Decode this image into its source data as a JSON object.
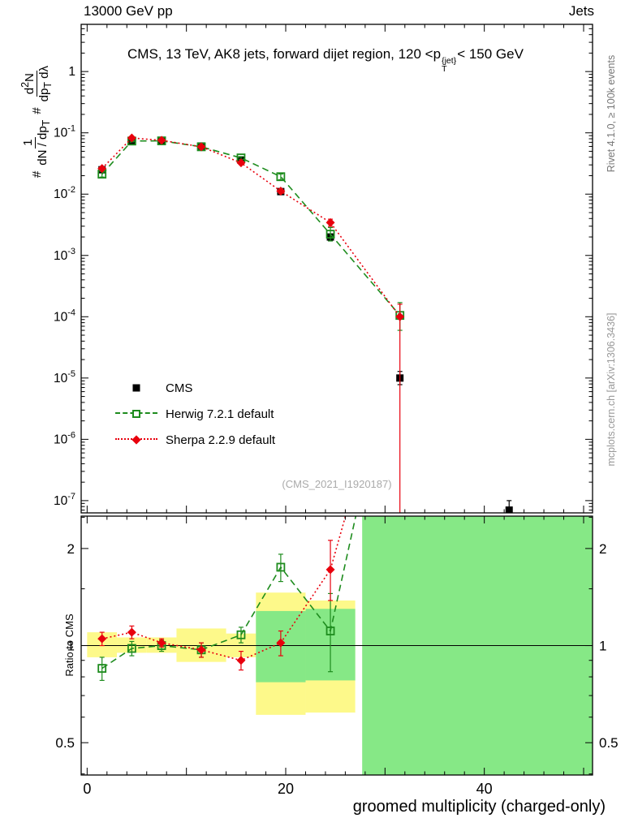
{
  "header": {
    "left": "13000 GeV pp",
    "right": "Jets"
  },
  "title": {
    "pre": "CMS, 13 TeV, AK8 jets, forward dijet region, 120 <p",
    "sup": "{jet}",
    "sub": "T",
    "post": "< 150 GeV"
  },
  "ylabel_main": {
    "hash1": "#",
    "f1num": "1",
    "f1den_pre": "dN / dp",
    "f1den_sub": "T",
    "hash2": "#",
    "f2num_pre": "d",
    "f2num_sup": "2",
    "f2num_post": "N",
    "f2den_pre": "dp",
    "f2den_sub": "T",
    "f2den_post": " dλ"
  },
  "watermark": "(CMS_2021_I1920187)",
  "side_notes": {
    "top": "Rivet 4.1.0, ≥ 100k events",
    "bottom": "mcplots.cern.ch [arXiv:1306.3436]"
  },
  "chart_data": {
    "type": "line",
    "xlabel": "groomed multiplicity (charged-only)",
    "xlim": [
      -0.6,
      50.9
    ],
    "x_minor_step": 2,
    "x_labeled_ticks": [
      0,
      20,
      40
    ],
    "main_panel": {
      "ylog": true,
      "y_exp_range": [
        -7.2,
        0.77
      ],
      "y_tick_exponents": [
        0,
        -1,
        -2,
        -3,
        -4,
        -5,
        -6,
        -7
      ]
    },
    "ratio_panel": {
      "ylabel": "Ratio to CMS",
      "yscale": "log2",
      "ylim": [
        0.397,
        2.52
      ],
      "y_ticks": [
        0.5,
        1,
        2
      ],
      "y_minor_ticks": [
        0.4,
        0.6,
        0.7,
        0.8,
        0.9,
        1.5,
        2.5
      ]
    },
    "colors": {
      "cms": "#000000",
      "herwig": "#1e8c1e",
      "sherpa": "#e8000d",
      "band_yellow": "#fdf98a",
      "band_green": "#86e886"
    },
    "series": [
      {
        "name": "CMS",
        "key": "cms",
        "color_key": "cms",
        "marker": "square",
        "line": "none",
        "x": [
          1.5,
          4.5,
          7.5,
          11.5,
          15.5,
          19.5,
          24.5,
          31.5,
          42.5
        ],
        "y": [
          0.025,
          0.075,
          0.074,
          0.061,
          0.036,
          0.011,
          0.002,
          1e-05,
          7e-08
        ],
        "ylo": [
          0.0235,
          0.0725,
          0.0715,
          0.0585,
          0.0345,
          0.0104,
          0.00187,
          7.8e-06,
          5e-08
        ],
        "yhi": [
          0.0265,
          0.0775,
          0.0765,
          0.0635,
          0.0375,
          0.0116,
          0.00213,
          1.28e-05,
          1e-07
        ]
      },
      {
        "name": "Herwig 7.2.1 default",
        "key": "herwig",
        "color_key": "herwig",
        "marker": "open-square",
        "line": "dashed",
        "x": [
          1.5,
          4.5,
          7.5,
          11.5,
          15.5,
          19.5,
          24.5,
          31.5
        ],
        "y": [
          0.0212,
          0.0735,
          0.074,
          0.0592,
          0.039,
          0.01925,
          0.00222,
          0.000105
        ],
        "ylo": [
          0.019,
          0.071,
          0.0715,
          0.0565,
          0.037,
          0.0172,
          0.00172,
          6e-05
        ],
        "yhi": [
          0.0234,
          0.076,
          0.0765,
          0.0619,
          0.041,
          0.0213,
          0.00285,
          0.00017
        ]
      },
      {
        "name": "Sherpa 2.2.9 default",
        "key": "sherpa",
        "color_key": "sherpa",
        "marker": "diamond",
        "line": "dotted",
        "x": [
          1.5,
          4.5,
          7.5,
          11.5,
          15.5,
          19.5,
          24.5,
          31.5
        ],
        "y": [
          0.0262,
          0.0825,
          0.0755,
          0.0592,
          0.0324,
          0.0112,
          0.00344,
          0.0001
        ],
        "ylo": [
          0.0252,
          0.079,
          0.073,
          0.0565,
          0.031,
          0.0103,
          0.00298,
          3e-08
        ],
        "yhi": [
          0.0272,
          0.086,
          0.078,
          0.0619,
          0.0338,
          0.0121,
          0.0039,
          0.00016
        ]
      }
    ],
    "ratio_series": [
      {
        "name": "Herwig 7.2.1 default",
        "key": "herwig-ratio",
        "color_key": "herwig",
        "marker": "open-square",
        "line": "dashed",
        "x": [
          1.5,
          4.5,
          7.5,
          11.5,
          15.5,
          19.5,
          24.5,
          31.5
        ],
        "y": [
          0.85,
          0.98,
          1.0,
          0.97,
          1.08,
          1.75,
          1.11,
          10.5
        ],
        "ylo": [
          0.78,
          0.93,
          0.96,
          0.92,
          1.02,
          1.58,
          0.83,
          10.5
        ],
        "yhi": [
          0.92,
          1.03,
          1.04,
          1.02,
          1.14,
          1.92,
          1.45,
          10.5
        ]
      },
      {
        "name": "Sherpa 2.2.9 default",
        "key": "sherpa-ratio",
        "color_key": "sherpa",
        "marker": "diamond",
        "line": "dotted",
        "x": [
          1.5,
          4.5,
          7.5,
          11.5,
          15.5,
          19.5,
          24.5,
          31.5
        ],
        "y": [
          1.05,
          1.1,
          1.02,
          0.97,
          0.9,
          1.02,
          1.72,
          10.0
        ],
        "ylo": [
          1.0,
          1.05,
          0.99,
          0.92,
          0.84,
          0.93,
          1.38,
          10.0
        ],
        "yhi": [
          1.1,
          1.15,
          1.05,
          1.02,
          0.96,
          1.11,
          2.12,
          10.0
        ]
      }
    ],
    "ratio_bands": [
      {
        "x0": 0,
        "x1": 3,
        "yellow": [
          0.92,
          1.1
        ],
        "green": null
      },
      {
        "x0": 3,
        "x1": 6,
        "yellow": [
          0.95,
          1.06
        ],
        "green": null
      },
      {
        "x0": 6,
        "x1": 9,
        "yellow": [
          0.95,
          1.06
        ],
        "green": null
      },
      {
        "x0": 9,
        "x1": 14,
        "yellow": [
          0.89,
          1.13
        ],
        "green": null
      },
      {
        "x0": 14,
        "x1": 17,
        "yellow": [
          0.92,
          1.09
        ],
        "green": null
      },
      {
        "x0": 17,
        "x1": 22,
        "yellow": [
          0.61,
          1.46
        ],
        "green": [
          0.77,
          1.28
        ]
      },
      {
        "x0": 22,
        "x1": 27,
        "yellow": [
          0.62,
          1.38
        ],
        "green": [
          0.78,
          1.3
        ]
      },
      {
        "x0": 27.7,
        "x1": 50.9,
        "yellow": null,
        "green": [
          0.397,
          2.52
        ]
      }
    ]
  }
}
